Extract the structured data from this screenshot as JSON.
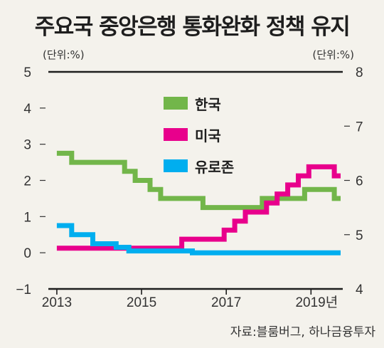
{
  "title": "주요국 중앙은행 통화완화 정책 유지",
  "source": "자료:블룸버그, 하나금융투자",
  "colors": {
    "korea": "#72b64a",
    "usa": "#e8008c",
    "eurozone": "#00aeef"
  },
  "chart_data": {
    "type": "line",
    "title": "주요국 중앙은행 통화완화 정책 유지",
    "left_axis": {
      "unit": "(단위:%)",
      "ylim": [
        -1,
        5
      ],
      "ticks": [
        5,
        4,
        3,
        2,
        1,
        0,
        -1
      ]
    },
    "right_axis": {
      "unit": "(단위:%)",
      "ylim": [
        4,
        8
      ],
      "ticks": [
        8,
        7,
        6,
        5,
        4
      ]
    },
    "x_axis": {
      "tick_labels": [
        "2013",
        "2015",
        "2017",
        "2019년"
      ],
      "ticks": [
        2013,
        2015,
        2017,
        2019
      ],
      "xlim": [
        2012.8,
        2019.75
      ]
    },
    "legend": [
      "한국",
      "미국",
      "유로존"
    ],
    "series": [
      {
        "name": "한국",
        "color": "#72b64a",
        "x": [
          2013.0,
          2013.35,
          2013.35,
          2014.6,
          2014.6,
          2014.75,
          2014.75,
          2014.85,
          2014.85,
          2015.2,
          2015.2,
          2015.45,
          2015.45,
          2015.7,
          2015.7,
          2016.45,
          2016.45,
          2017.85,
          2017.85,
          2018.85,
          2018.85,
          2019.55,
          2019.55,
          2019.7
        ],
        "values": [
          2.75,
          2.75,
          2.5,
          2.5,
          2.25,
          2.25,
          2.25,
          2.25,
          2.0,
          2.0,
          1.75,
          1.75,
          1.5,
          1.5,
          1.5,
          1.5,
          1.25,
          1.25,
          1.5,
          1.5,
          1.75,
          1.75,
          1.5,
          1.5
        ]
      },
      {
        "name": "미국",
        "color": "#e8008c",
        "x": [
          2013.0,
          2015.95,
          2015.95,
          2016.95,
          2016.95,
          2017.2,
          2017.2,
          2017.45,
          2017.45,
          2017.95,
          2017.95,
          2018.2,
          2018.2,
          2018.45,
          2018.45,
          2018.7,
          2018.7,
          2018.95,
          2018.95,
          2019.55,
          2019.55,
          2019.7
        ],
        "values": [
          0.125,
          0.125,
          0.375,
          0.375,
          0.625,
          0.625,
          0.875,
          0.875,
          1.125,
          1.125,
          1.375,
          1.375,
          1.625,
          1.625,
          1.875,
          1.875,
          2.125,
          2.125,
          2.375,
          2.375,
          2.125,
          2.125
        ]
      },
      {
        "name": "유로존",
        "color": "#00aeef",
        "x": [
          2013.0,
          2013.35,
          2013.35,
          2013.85,
          2013.85,
          2014.4,
          2014.4,
          2014.7,
          2014.7,
          2015.0,
          2015.0,
          2016.2,
          2016.2,
          2019.7
        ],
        "values": [
          0.75,
          0.75,
          0.5,
          0.5,
          0.25,
          0.25,
          0.15,
          0.15,
          0.05,
          0.05,
          0.05,
          0.05,
          0.0,
          0.0
        ]
      }
    ]
  }
}
